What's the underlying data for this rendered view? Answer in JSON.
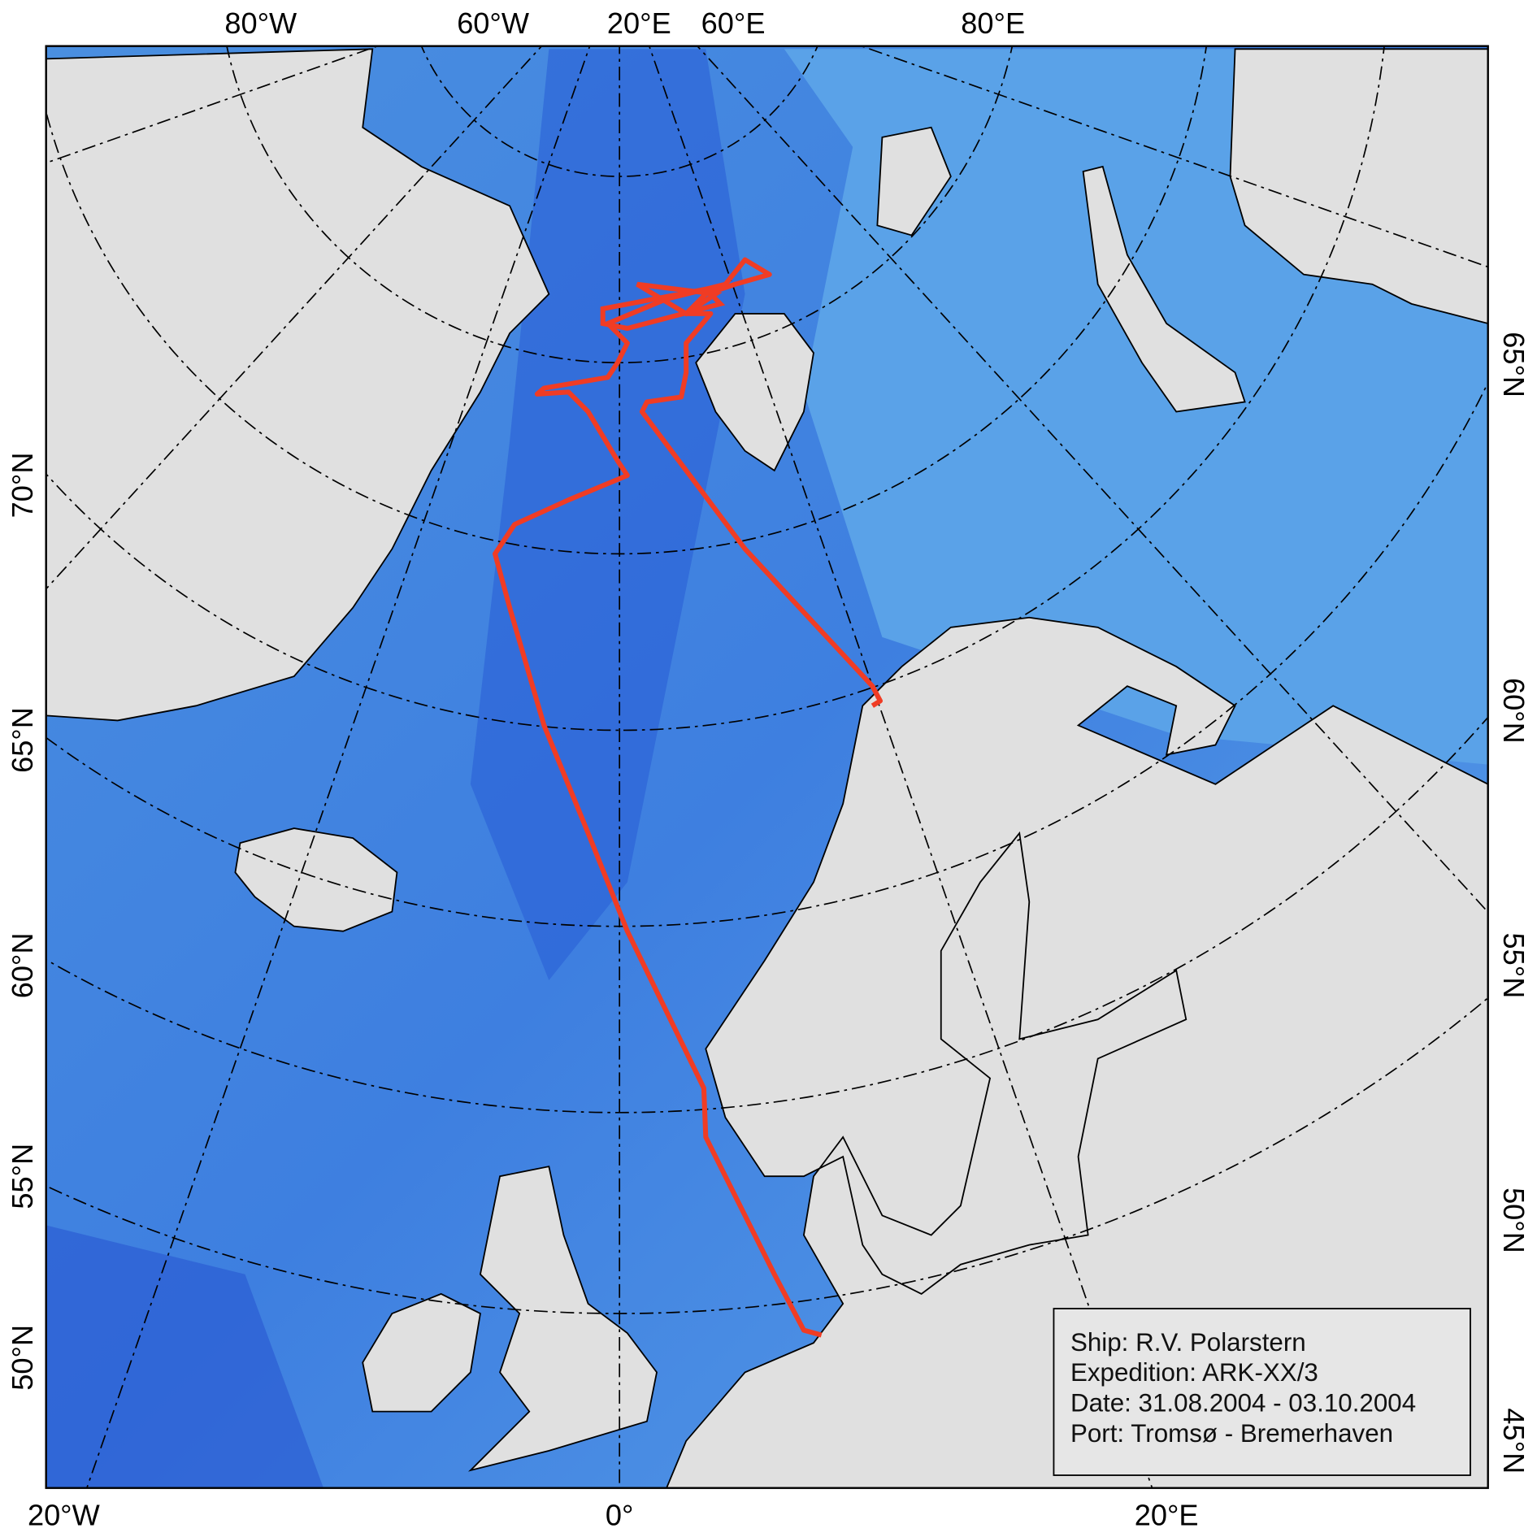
{
  "map": {
    "top_labels": [
      "80°W",
      "60°W",
      "20°E",
      "60°E",
      "80°E"
    ],
    "bottom_labels": [
      "20°W",
      "0°",
      "20°E"
    ],
    "left_labels": [
      "70°N",
      "65°N",
      "60°N",
      "55°N",
      "50°N"
    ],
    "right_labels": [
      "65°N",
      "60°N",
      "55°N",
      "50°N",
      "45°N"
    ],
    "info_box": [
      "Ship: R.V. Polarstern",
      "Expedition: ARK-XX/3",
      "Date: 31.08.2004 - 03.10.2004",
      "Port: Tromsø - Bremerhaven"
    ]
  }
}
